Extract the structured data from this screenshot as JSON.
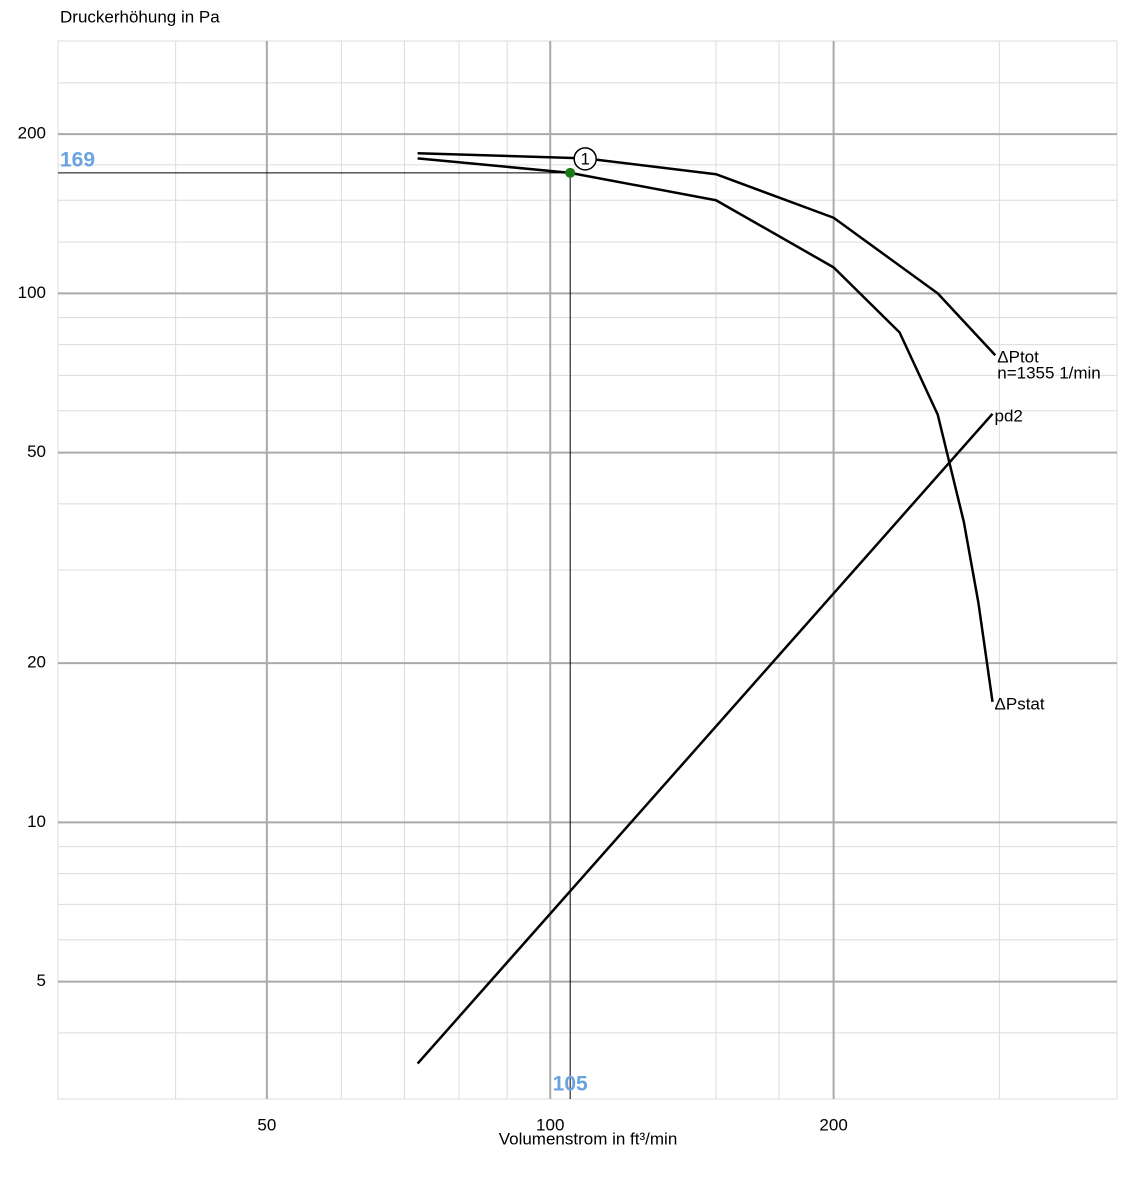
{
  "chart_data": {
    "type": "line",
    "y_label": "Druckerhöhung in Pa",
    "x_label": "Volumenstrom in ft³/min",
    "log_x": true,
    "log_y": true,
    "grid": true,
    "xlim": [
      30,
      400
    ],
    "ylim": [
      3,
      300
    ],
    "xticks": [
      50,
      100,
      200
    ],
    "yticks": [
      5,
      10,
      20,
      50,
      100,
      200
    ],
    "x_minor_grid": [
      40,
      60,
      70,
      80,
      90,
      150,
      175,
      300
    ],
    "y_minor_grid": [
      4,
      6,
      7,
      8,
      9,
      30,
      40,
      60,
      70,
      80,
      90,
      125,
      150,
      175,
      250
    ],
    "series": [
      {
        "name": "ΔPtot",
        "color": "#000000",
        "x": [
          72.3,
          109,
          150,
          200,
          258,
          297
        ],
        "values": [
          184,
          180,
          168,
          139,
          100,
          76.4
        ]
      },
      {
        "name": "ΔPstat",
        "color": "#000000",
        "x": [
          72.3,
          105,
          150,
          200,
          235,
          258,
          275,
          285,
          295
        ],
        "values": [
          180,
          169,
          150,
          112,
          84.4,
          59,
          37,
          26,
          16.9
        ]
      },
      {
        "name": "pd2",
        "color": "#000000",
        "x": [
          72.3,
          295
        ],
        "values": [
          3.5,
          59.2
        ]
      }
    ],
    "annotation": "n=1355 1/min",
    "operating_point": {
      "x": 105,
      "y": 169,
      "label": "1",
      "color": "#1a7a1a"
    }
  }
}
